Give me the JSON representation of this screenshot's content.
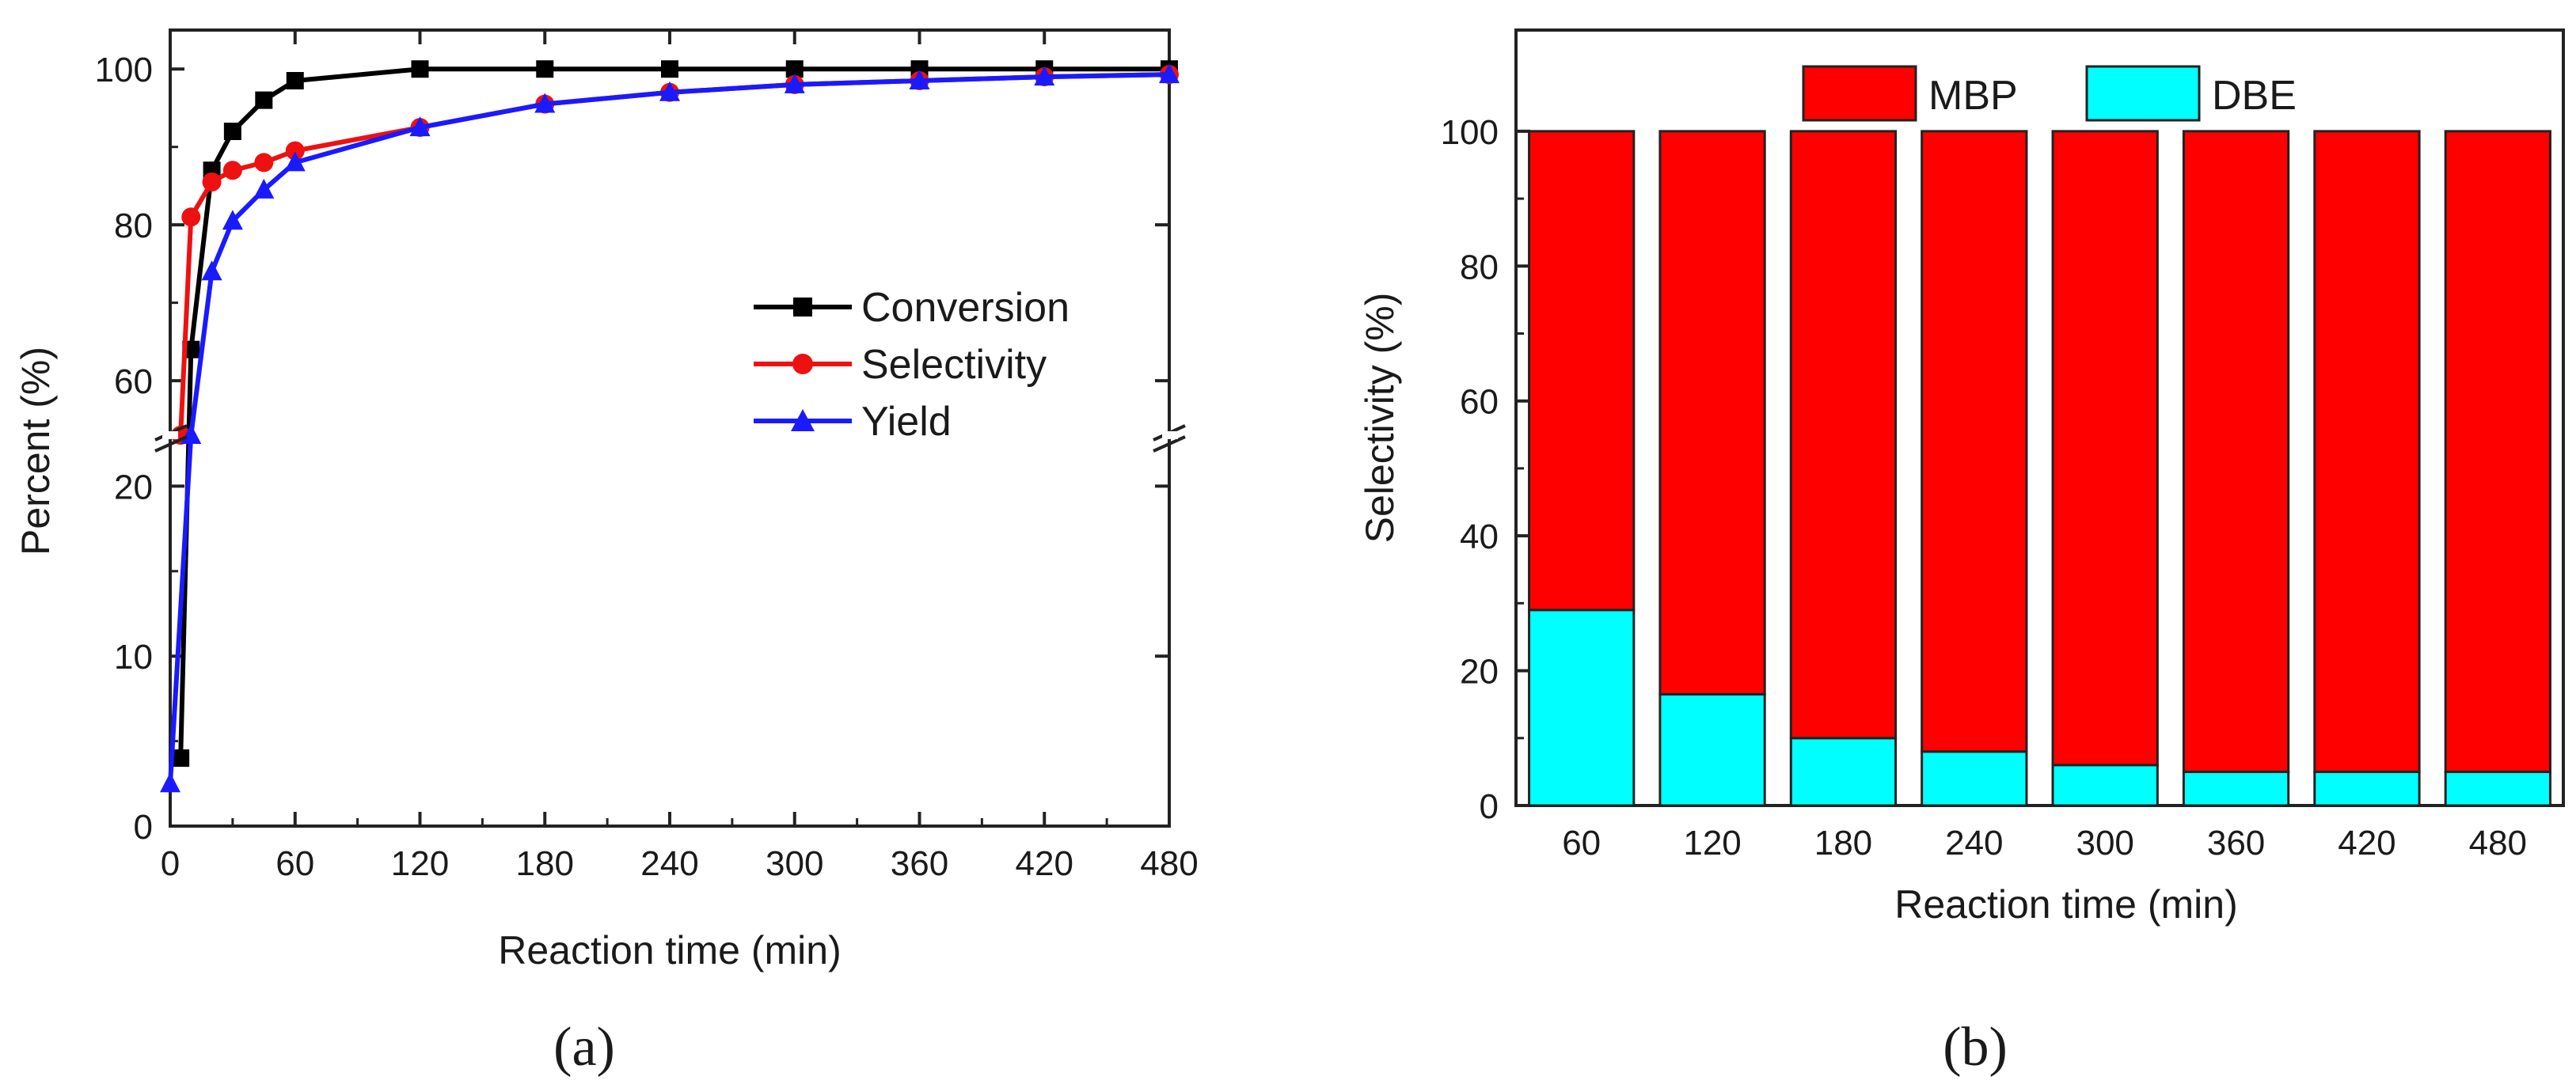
{
  "panel_labels": [
    "(a)",
    "(b)"
  ],
  "chart_data": [
    {
      "id": "a",
      "type": "line",
      "title": "",
      "xlabel": "Reaction time (min)",
      "ylabel": "Percent (%)",
      "xlim": [
        0,
        480
      ],
      "x_ticks": [
        "0",
        "60",
        "120",
        "180",
        "240",
        "300",
        "360",
        "420",
        "480"
      ],
      "y_axis_break": {
        "lower_range": [
          0,
          23
        ],
        "upper_range": [
          53,
          105
        ]
      },
      "y_ticks_lower": [
        "0",
        "10",
        "20"
      ],
      "y_ticks_upper": [
        "60",
        "80",
        "100"
      ],
      "legend_position": "center-right",
      "series": [
        {
          "name": "Conversion",
          "color": "#000000",
          "marker": "square",
          "x": [
            5,
            10,
            20,
            30,
            45,
            60,
            120,
            180,
            240,
            300,
            360,
            420,
            480
          ],
          "y": [
            4,
            64,
            87,
            92,
            96,
            98.5,
            100,
            100,
            100,
            100,
            100,
            100,
            100
          ]
        },
        {
          "name": "Selectivity",
          "color": "#ee1111",
          "marker": "circle",
          "x": [
            5,
            10,
            20,
            30,
            45,
            60,
            120,
            180,
            240,
            300,
            360,
            420,
            480
          ],
          "y": [
            53,
            81,
            85.5,
            87,
            88,
            89.5,
            92.5,
            95.5,
            97,
            98,
            98.5,
            99,
            99.3
          ]
        },
        {
          "name": "Yield",
          "color": "#1a1aff",
          "marker": "triangle",
          "x": [
            0,
            10,
            20,
            30,
            45,
            60,
            120,
            180,
            240,
            300,
            360,
            420,
            480
          ],
          "y": [
            2.5,
            53,
            74,
            80.5,
            84.5,
            88,
            92.5,
            95.5,
            97,
            98,
            98.5,
            99,
            99.3
          ]
        }
      ]
    },
    {
      "id": "b",
      "type": "bar",
      "stacked": true,
      "title": "",
      "xlabel": "Reaction time (min)",
      "ylabel": "Selectivity (%)",
      "ylim": [
        0,
        115
      ],
      "y_ticks": [
        "0",
        "20",
        "40",
        "60",
        "80",
        "100"
      ],
      "categories": [
        "60",
        "120",
        "180",
        "240",
        "300",
        "360",
        "420",
        "480"
      ],
      "legend_position": "top",
      "series": [
        {
          "name": "DBE",
          "color": "#00ffff",
          "values": [
            29,
            16.5,
            10,
            8,
            6,
            5,
            5,
            5
          ]
        },
        {
          "name": "MBP",
          "color": "#ff0000",
          "values": [
            71,
            83.5,
            90,
            92,
            94,
            95,
            95,
            95
          ]
        }
      ]
    }
  ]
}
